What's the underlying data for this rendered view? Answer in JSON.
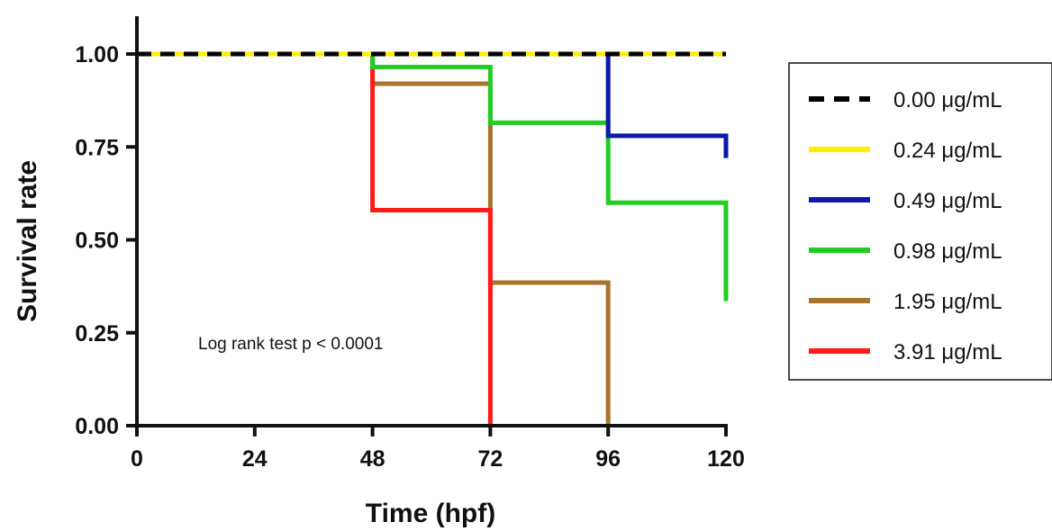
{
  "chart_data": {
    "type": "line",
    "step": true,
    "title": "",
    "xlabel": "Time (hpf)",
    "ylabel": "Survival rate",
    "xlim": [
      0,
      120
    ],
    "ylim": [
      0,
      1.0
    ],
    "x_ticks": [
      "0",
      "24",
      "48",
      "72",
      "96",
      "120"
    ],
    "y_ticks": [
      "0.00",
      "0.25",
      "0.50",
      "0.75",
      "1.00"
    ],
    "grid": false,
    "legend_position": "right",
    "annotation": "Log rank test p < 0.0001",
    "series": [
      {
        "name": "0.00 μg/mL",
        "color": "#000000",
        "dashed": true,
        "points": [
          [
            0,
            1.0
          ],
          [
            120,
            1.0
          ]
        ]
      },
      {
        "name": "0.24 μg/mL",
        "color": "#ffee00",
        "dashed": false,
        "points": [
          [
            0,
            1.0
          ],
          [
            120,
            1.0
          ]
        ]
      },
      {
        "name": "0.49 μg/mL",
        "color": "#0a1aa8",
        "dashed": false,
        "points": [
          [
            0,
            1.0
          ],
          [
            96,
            1.0
          ],
          [
            96,
            0.78
          ],
          [
            120,
            0.78
          ],
          [
            120,
            0.72
          ]
        ]
      },
      {
        "name": "0.98 μg/mL",
        "color": "#22cc22",
        "dashed": false,
        "points": [
          [
            0,
            1.0
          ],
          [
            48,
            1.0
          ],
          [
            48,
            0.965
          ],
          [
            72,
            0.965
          ],
          [
            72,
            0.815
          ],
          [
            96,
            0.815
          ],
          [
            96,
            0.6
          ],
          [
            120,
            0.6
          ],
          [
            120,
            0.335
          ]
        ]
      },
      {
        "name": "1.95 μg/mL",
        "color": "#a8732a",
        "dashed": false,
        "points": [
          [
            0,
            1.0
          ],
          [
            48,
            1.0
          ],
          [
            48,
            0.92
          ],
          [
            72,
            0.92
          ],
          [
            72,
            0.385
          ],
          [
            96,
            0.385
          ],
          [
            96,
            0.0
          ]
        ]
      },
      {
        "name": "3.91 μg/mL",
        "color": "#ff1a1a",
        "dashed": false,
        "points": [
          [
            0,
            1.0
          ],
          [
            48,
            1.0
          ],
          [
            48,
            0.58
          ],
          [
            72,
            0.58
          ],
          [
            72,
            0.0
          ]
        ]
      }
    ]
  }
}
